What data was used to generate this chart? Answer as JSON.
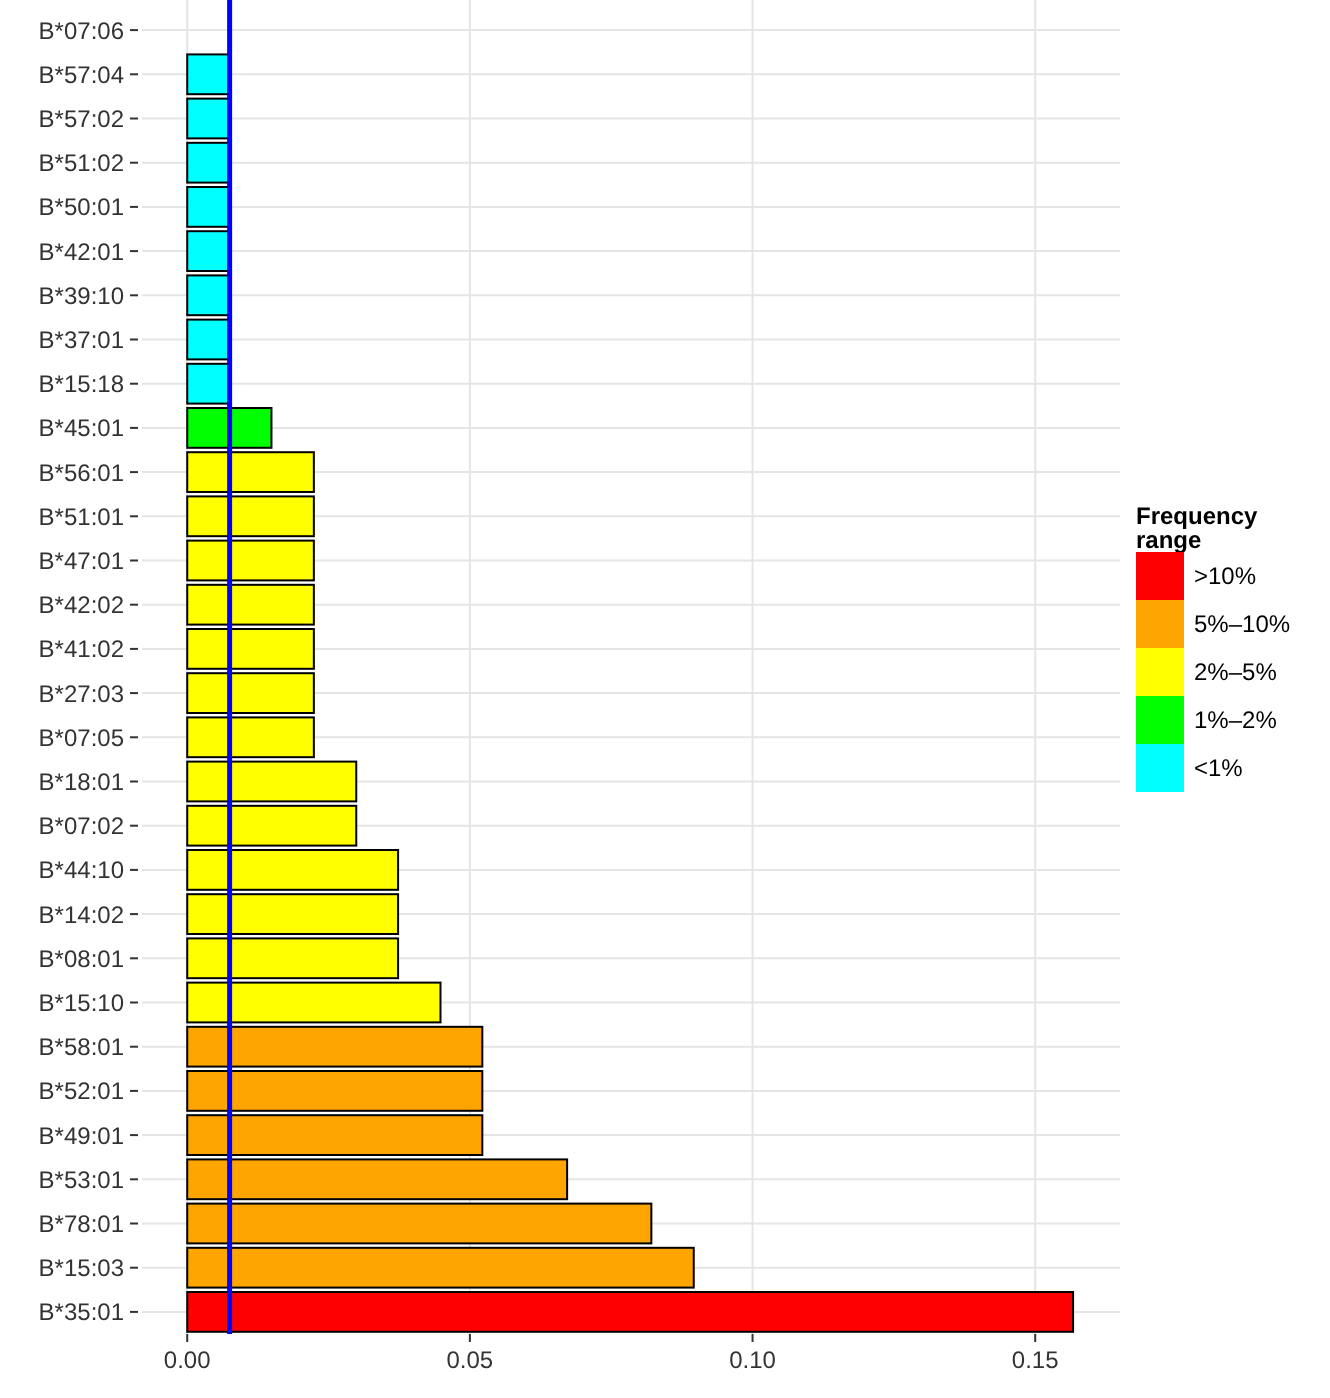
{
  "chart_data": {
    "type": "bar",
    "orientation": "horizontal",
    "categories": [
      "B*07:06",
      "B*57:04",
      "B*57:02",
      "B*51:02",
      "B*50:01",
      "B*42:01",
      "B*39:10",
      "B*37:01",
      "B*15:18",
      "B*45:01",
      "B*56:01",
      "B*51:01",
      "B*47:01",
      "B*42:02",
      "B*41:02",
      "B*27:03",
      "B*07:05",
      "B*18:01",
      "B*07:02",
      "B*44:10",
      "B*14:02",
      "B*08:01",
      "B*15:10",
      "B*58:01",
      "B*52:01",
      "B*49:01",
      "B*53:01",
      "B*78:01",
      "B*15:03",
      "B*35:01"
    ],
    "series": [
      {
        "name": ">10%",
        "color": "#ff0000",
        "values": [
          null,
          null,
          null,
          null,
          null,
          null,
          null,
          null,
          null,
          null,
          null,
          null,
          null,
          null,
          null,
          null,
          null,
          null,
          null,
          null,
          null,
          null,
          null,
          null,
          null,
          null,
          null,
          null,
          null,
          0.1567
        ]
      },
      {
        "name": "5%–10%",
        "color": "#ffa500",
        "values": [
          null,
          null,
          null,
          null,
          null,
          null,
          null,
          null,
          null,
          null,
          null,
          null,
          null,
          null,
          null,
          null,
          null,
          null,
          null,
          null,
          null,
          null,
          null,
          0.0522,
          0.0522,
          0.0522,
          0.0672,
          0.0821,
          0.0896,
          null
        ]
      },
      {
        "name": "2%–5%",
        "color": "#ffff00",
        "values": [
          null,
          null,
          null,
          null,
          null,
          null,
          null,
          null,
          null,
          null,
          0.0224,
          0.0224,
          0.0224,
          0.0224,
          0.0224,
          0.0224,
          0.0224,
          0.0299,
          0.0299,
          0.0373,
          0.0373,
          0.0373,
          0.0448,
          null,
          null,
          null,
          null,
          null,
          null,
          null
        ]
      },
      {
        "name": "1%–2%",
        "color": "#00ff00",
        "values": [
          null,
          null,
          null,
          null,
          null,
          null,
          null,
          null,
          null,
          0.0149,
          null,
          null,
          null,
          null,
          null,
          null,
          null,
          null,
          null,
          null,
          null,
          null,
          null,
          null,
          null,
          null,
          null,
          null,
          null,
          null
        ]
      },
      {
        "name": "<1%",
        "color": "#00ffff",
        "values": [
          0,
          0.0075,
          0.0075,
          0.0075,
          0.0075,
          0.0075,
          0.0075,
          0.0075,
          0.0075,
          null,
          null,
          null,
          null,
          null,
          null,
          null,
          null,
          null,
          null,
          null,
          null,
          null,
          null,
          null,
          null,
          null,
          null,
          null,
          null,
          null
        ]
      }
    ],
    "xlim": [
      -0.008,
      0.165
    ],
    "xticks": [
      {
        "value": 0,
        "label": "0.00"
      },
      {
        "value": 0.05,
        "label": "0.05"
      },
      {
        "value": 0.1,
        "label": "0.10"
      },
      {
        "value": 0.15,
        "label": "0.15"
      }
    ],
    "ref_lines": [
      {
        "axis": "x",
        "value": 0.0075,
        "color": "#0000ff"
      }
    ],
    "legend_title": "Frequency range",
    "legend": "right",
    "grid": true
  }
}
